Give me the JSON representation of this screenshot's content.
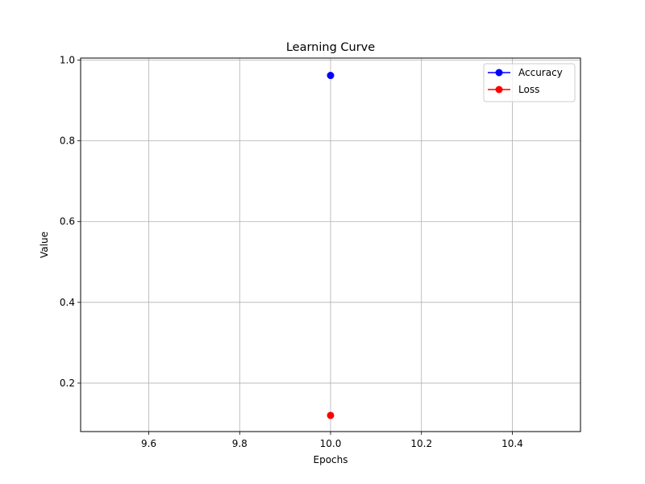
{
  "chart_data": {
    "type": "line",
    "title": "Learning Curve",
    "xlabel": "Epochs",
    "ylabel": "Value",
    "xlim": [
      9.45,
      10.55
    ],
    "ylim": [
      0.08,
      1.005
    ],
    "xticks": [
      9.6,
      9.8,
      10.0,
      10.2,
      10.4
    ],
    "xtick_labels": [
      "9.6",
      "9.8",
      "10.0",
      "10.2",
      "10.4"
    ],
    "yticks": [
      0.2,
      0.4,
      0.6,
      0.8,
      1.0
    ],
    "ytick_labels": [
      "0.2",
      "0.4",
      "0.6",
      "0.8",
      "1.0"
    ],
    "grid": true,
    "legend_position": "top-right",
    "series": [
      {
        "name": "Accuracy",
        "color": "#0000ff",
        "marker": "circle",
        "x": [
          10.0
        ],
        "y": [
          0.962
        ]
      },
      {
        "name": "Loss",
        "color": "#ff0000",
        "marker": "circle",
        "x": [
          10.0
        ],
        "y": [
          0.12
        ]
      }
    ]
  }
}
